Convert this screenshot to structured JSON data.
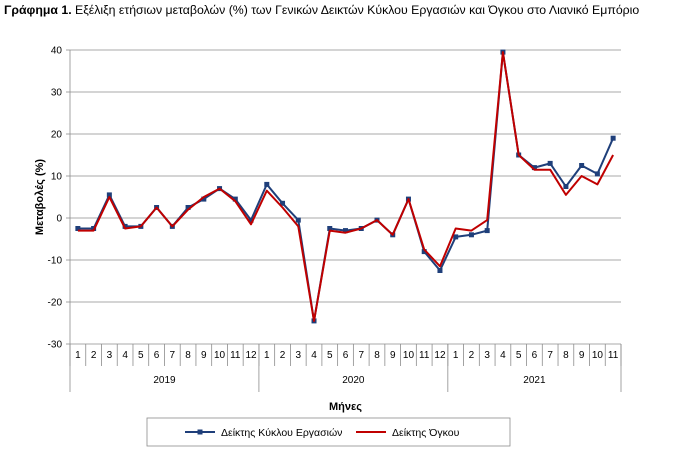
{
  "caption": {
    "label": "Γράφημα 1.",
    "text": "Εξέλιξη ετήσιων μεταβολών (%) των Γενικών Δεικτών Κύκλου Εργασιών και Όγκου στο Λιανικό Εμπόριο"
  },
  "chart_data": {
    "type": "line",
    "xlabel": "Μήνες",
    "ylabel": "Μεταβολές (%)",
    "ylim": [
      -30,
      40
    ],
    "yticks": [
      -30,
      -20,
      -10,
      0,
      10,
      20,
      30,
      40
    ],
    "grid": "horizontal",
    "legend_position": "bottom",
    "years": [
      {
        "label": "2019",
        "months": 12
      },
      {
        "label": "2020",
        "months": 12
      },
      {
        "label": "2021",
        "months": 11
      }
    ],
    "categories": [
      "1",
      "2",
      "3",
      "4",
      "5",
      "6",
      "7",
      "8",
      "9",
      "10",
      "11",
      "12",
      "1",
      "2",
      "3",
      "4",
      "5",
      "6",
      "7",
      "8",
      "9",
      "10",
      "11",
      "12",
      "1",
      "2",
      "3",
      "4",
      "5",
      "6",
      "7",
      "8",
      "9",
      "10",
      "11"
    ],
    "series": [
      {
        "name": "Δείκτης Κύκλου Εργασιών",
        "color": "#1F3F7A",
        "marker": "square",
        "values": [
          -2.5,
          -2.5,
          5.5,
          -2.0,
          -2.0,
          2.5,
          -2.0,
          2.5,
          4.5,
          7.0,
          4.5,
          -0.5,
          8.0,
          3.5,
          -0.5,
          -24.5,
          -2.5,
          -3.0,
          -2.5,
          -0.5,
          -4.0,
          4.5,
          -8.0,
          -12.5,
          -4.5,
          -4.0,
          -3.0,
          39.5,
          15.0,
          12.0,
          13.0,
          7.5,
          12.5,
          10.5,
          19.0
        ]
      },
      {
        "name": "Δείκτης Όγκου",
        "color": "#C00000",
        "marker": "none",
        "values": [
          -3.0,
          -3.0,
          5.0,
          -2.5,
          -2.0,
          2.5,
          -2.0,
          2.0,
          5.0,
          7.0,
          4.0,
          -1.5,
          6.5,
          2.5,
          -2.0,
          -24.5,
          -3.0,
          -3.5,
          -2.5,
          -0.5,
          -4.0,
          4.5,
          -7.5,
          -11.5,
          -2.5,
          -3.0,
          -0.5,
          39.5,
          15.0,
          11.5,
          11.5,
          5.5,
          10.0,
          8.0,
          15.0
        ]
      }
    ]
  }
}
